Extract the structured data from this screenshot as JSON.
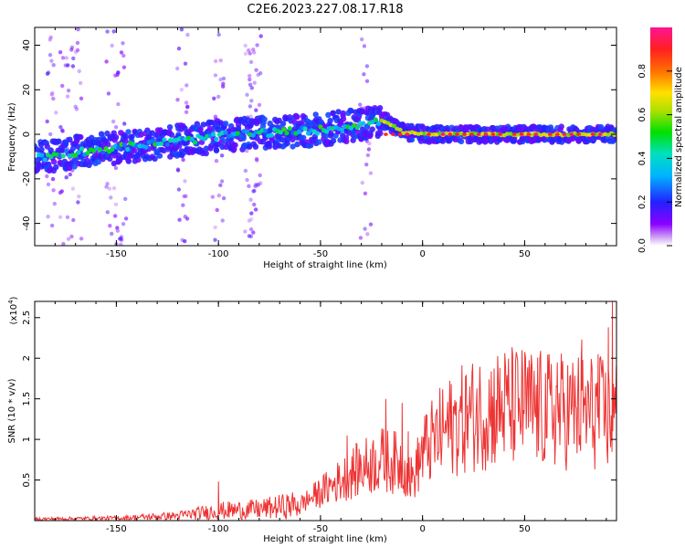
{
  "title": "C2E6.2023.227.08.17.R18",
  "chart_data": [
    {
      "type": "heatmap",
      "xlabel": "Height of straight line (km)",
      "ylabel": "Frequency (Hz)",
      "xlim": [
        -190,
        95
      ],
      "ylim": [
        -50,
        48
      ],
      "xticks": [
        -150,
        -100,
        -50,
        0,
        50
      ],
      "yticks": [
        -40,
        -20,
        0,
        20,
        40
      ],
      "colorbar": {
        "label": "Normalized spectral amplitude",
        "range": [
          0,
          1
        ],
        "ticks": [
          0.0,
          0.2,
          0.4,
          0.6,
          0.8
        ]
      },
      "ridge": {
        "x": [
          -185,
          -170,
          -150,
          -130,
          -110,
          -90,
          -70,
          -50,
          -35,
          -25,
          -18,
          -10,
          0,
          10,
          30,
          50,
          70,
          93
        ],
        "y": [
          -10,
          -8,
          -6,
          -4,
          -2,
          0,
          1,
          2,
          4,
          5,
          6,
          1,
          0,
          0,
          0,
          0,
          0,
          0
        ]
      },
      "bright_band_x": [
        -20,
        93
      ]
    },
    {
      "type": "line",
      "xlabel": "Height of straight line (km)",
      "ylabel": "SNR (10 * v/v)",
      "yscale_label": "(x10",
      "yscale_exp": "4",
      "xlim": [
        -190,
        95
      ],
      "ylim": [
        0,
        2.7
      ],
      "xticks": [
        -150,
        -100,
        -50,
        0,
        50
      ],
      "yticks": [
        0.5,
        1.0,
        1.5,
        2.0,
        2.5
      ],
      "series": [
        {
          "color": "#ee3333",
          "envelope_x": [
            -190,
            -150,
            -120,
            -100,
            -80,
            -60,
            -50,
            -40,
            -30,
            -20,
            -10,
            -5,
            0,
            10,
            20,
            30,
            40,
            50,
            60,
            70,
            80,
            90,
            93
          ],
          "envelope_y": [
            0.02,
            0.03,
            0.06,
            0.12,
            0.14,
            0.2,
            0.35,
            0.5,
            0.65,
            0.75,
            0.7,
            0.5,
            0.85,
            1.1,
            1.25,
            1.35,
            1.4,
            1.4,
            1.35,
            1.35,
            1.35,
            1.3,
            1.3
          ],
          "peaks": [
            [
              -100,
              0.48
            ],
            [
              -37,
              1.05
            ],
            [
              -18,
              1.5
            ],
            [
              -10,
              1.45
            ],
            [
              -7,
              1.1
            ],
            [
              22,
              1.42
            ],
            [
              49,
              1.82
            ],
            [
              66,
              1.95
            ],
            [
              78,
              2.23
            ],
            [
              86,
              2.05
            ],
            [
              91,
              2.38
            ],
            [
              93,
              2.7
            ]
          ]
        }
      ]
    }
  ]
}
